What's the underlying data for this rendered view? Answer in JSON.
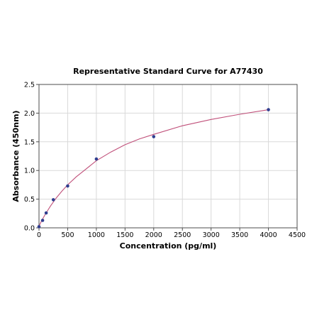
{
  "chart_data": {
    "type": "scatter",
    "title": "Representative Standard Curve for A77430",
    "xlabel": "Concentration (pg/ml)",
    "ylabel": "Absorbance (450nm)",
    "xlim": [
      0,
      4500
    ],
    "ylim": [
      0,
      2.5
    ],
    "x_ticks": [
      0,
      500,
      1000,
      1500,
      2000,
      2500,
      3000,
      3500,
      4000,
      4500
    ],
    "y_ticks": [
      0.0,
      0.5,
      1.0,
      1.5,
      2.0,
      2.5
    ],
    "x_tick_labels": [
      "0",
      "500",
      "1000",
      "1500",
      "2000",
      "2500",
      "3000",
      "3500",
      "4000",
      "4500"
    ],
    "y_tick_labels": [
      "0.0",
      "0.5",
      "1.0",
      "1.5",
      "2.0",
      "2.5"
    ],
    "grid": true,
    "series": [
      {
        "x": [
          0,
          62.5,
          125,
          250,
          500,
          1000,
          2000,
          4000
        ],
        "y": [
          0.02,
          0.13,
          0.26,
          0.49,
          0.73,
          1.2,
          1.59,
          2.06
        ],
        "color": "#2f3e8f"
      }
    ],
    "fit_curve": {
      "color": "#c0507a",
      "x": [
        0,
        25,
        50,
        100,
        150,
        200,
        300,
        400,
        500,
        650,
        800,
        1000,
        1250,
        1500,
        1750,
        2000,
        2500,
        3000,
        3500,
        4000
      ],
      "y": [
        0.03,
        0.08,
        0.13,
        0.22,
        0.3,
        0.38,
        0.52,
        0.64,
        0.75,
        0.89,
        1.01,
        1.17,
        1.32,
        1.45,
        1.55,
        1.63,
        1.78,
        1.89,
        1.98,
        2.06
      ]
    }
  }
}
